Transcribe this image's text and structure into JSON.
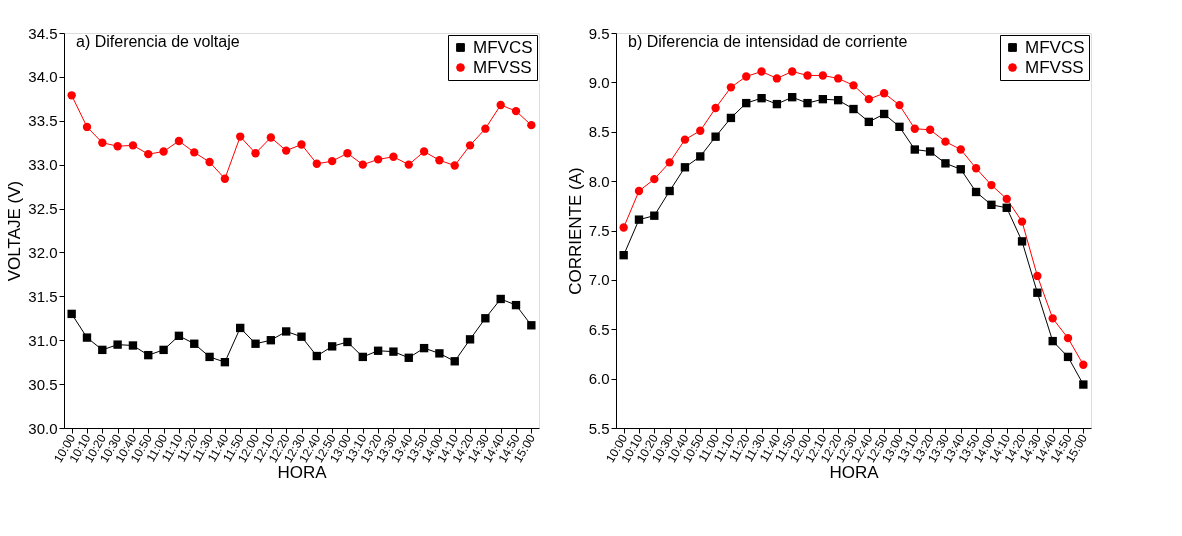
{
  "chart_data": [
    {
      "type": "line",
      "title": "a) Diferencia de voltaje",
      "xlabel": "HORA",
      "ylabel": "VOLTAJE (V)",
      "categories": [
        "10:00",
        "10:10",
        "10:20",
        "10:30",
        "10:40",
        "10:50",
        "11:00",
        "11:10",
        "11:20",
        "11:30",
        "11:40",
        "11:50",
        "12:00",
        "12:10",
        "12:20",
        "12:30",
        "12:40",
        "12:50",
        "13:00",
        "13:10",
        "13:20",
        "13:30",
        "13:40",
        "13:50",
        "14:00",
        "14:10",
        "14:20",
        "14:30",
        "14:40",
        "14:50",
        "15:00"
      ],
      "series": [
        {
          "name": "MFVCS",
          "color": "#000000",
          "marker": "square",
          "values": [
            31.3,
            31.03,
            30.89,
            30.95,
            30.94,
            30.83,
            30.89,
            31.05,
            30.96,
            30.81,
            30.75,
            31.14,
            30.96,
            31.0,
            31.1,
            31.04,
            30.82,
            30.93,
            30.98,
            30.81,
            30.88,
            30.87,
            30.8,
            30.91,
            30.85,
            30.76,
            31.01,
            31.25,
            31.47,
            31.4,
            31.17
          ]
        },
        {
          "name": "MFVSS",
          "color": "#ff0000",
          "marker": "circle",
          "values": [
            33.79,
            33.43,
            33.25,
            33.21,
            33.22,
            33.12,
            33.15,
            33.27,
            33.14,
            33.03,
            32.84,
            33.32,
            33.13,
            33.31,
            33.16,
            33.23,
            33.01,
            33.04,
            33.13,
            33.0,
            33.06,
            33.09,
            33.0,
            33.15,
            33.05,
            32.99,
            33.22,
            33.41,
            33.68,
            33.61,
            33.45
          ]
        }
      ],
      "ylim": [
        30.0,
        34.5
      ],
      "yticks": [
        {
          "value": 30,
          "label": "30.0"
        },
        {
          "value": 30.5,
          "label": "30.5"
        },
        {
          "value": 31,
          "label": "31.0"
        },
        {
          "value": 31.5,
          "label": "31.5"
        },
        {
          "value": 32,
          "label": "32.0"
        },
        {
          "value": 32.5,
          "label": "32.5"
        },
        {
          "value": 33,
          "label": "33.0"
        },
        {
          "value": 33.5,
          "label": "33.5"
        },
        {
          "value": 34,
          "label": "34.0"
        },
        {
          "value": 34.5,
          "label": "34.5"
        }
      ],
      "grid": false,
      "legend": "top right",
      "line_style": "solid"
    },
    {
      "type": "line",
      "title": "b) Diferencia de intensidad de corriente",
      "xlabel": "HORA",
      "ylabel": "CORRIENTE (A)",
      "categories": [
        "10:00",
        "10:10",
        "10:20",
        "10:30",
        "10:40",
        "10:50",
        "11:00",
        "11:10",
        "11:20",
        "11:30",
        "11:40",
        "11:50",
        "12:00",
        "12:10",
        "12:20",
        "12:30",
        "12:40",
        "12:50",
        "13:00",
        "13:10",
        "13:20",
        "13:30",
        "13:40",
        "13:50",
        "14:00",
        "14:10",
        "14:20",
        "14:30",
        "14:40",
        "14:50",
        "15:00"
      ],
      "series": [
        {
          "name": "MFVCS",
          "color": "#000000",
          "marker": "square",
          "values": [
            7.25,
            7.61,
            7.65,
            7.9,
            8.14,
            8.25,
            8.45,
            8.64,
            8.79,
            8.84,
            8.78,
            8.85,
            8.79,
            8.83,
            8.82,
            8.73,
            8.6,
            8.68,
            8.55,
            8.32,
            8.3,
            8.18,
            8.12,
            7.89,
            7.76,
            7.73,
            7.39,
            6.87,
            6.38,
            6.22,
            5.94
          ]
        },
        {
          "name": "MFVSS",
          "color": "#ff0000",
          "marker": "circle",
          "values": [
            7.53,
            7.9,
            8.02,
            8.19,
            8.42,
            8.51,
            8.74,
            8.95,
            9.06,
            9.11,
            9.04,
            9.11,
            9.07,
            9.07,
            9.04,
            8.97,
            8.83,
            8.89,
            8.77,
            8.53,
            8.52,
            8.4,
            8.32,
            8.13,
            7.96,
            7.82,
            7.59,
            7.04,
            6.61,
            6.41,
            6.14
          ]
        }
      ],
      "ylim": [
        5.5,
        9.5
      ],
      "yticks": [
        {
          "value": 5.5,
          "label": "5.5"
        },
        {
          "value": 6,
          "label": "6.0"
        },
        {
          "value": 6.5,
          "label": "6.5"
        },
        {
          "value": 7,
          "label": "7.0"
        },
        {
          "value": 7.5,
          "label": "7.5"
        },
        {
          "value": 8,
          "label": "8.0"
        },
        {
          "value": 8.5,
          "label": "8.5"
        },
        {
          "value": 9,
          "label": "9.0"
        },
        {
          "value": 9.5,
          "label": "9.5"
        }
      ],
      "grid": false,
      "legend": "top right",
      "line_style": "solid"
    }
  ]
}
